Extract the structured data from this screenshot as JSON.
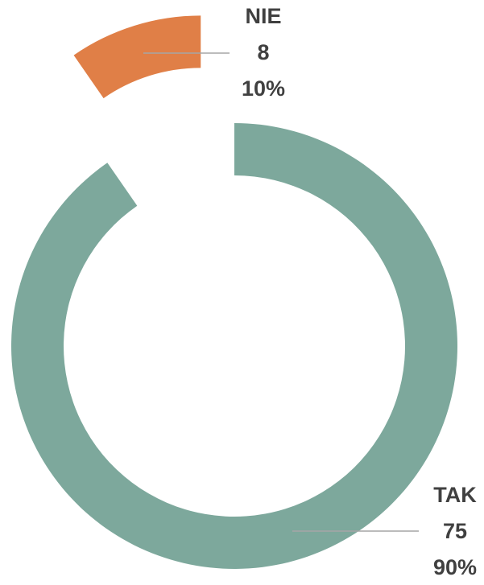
{
  "chart_data": {
    "type": "donut",
    "categories": [
      "TAK",
      "NIE"
    ],
    "values": [
      75,
      8
    ],
    "share_labels": [
      "90%",
      "10%"
    ],
    "colors": [
      "#7da89c",
      "#e07f47"
    ],
    "exploded": [
      false,
      true
    ]
  }
}
